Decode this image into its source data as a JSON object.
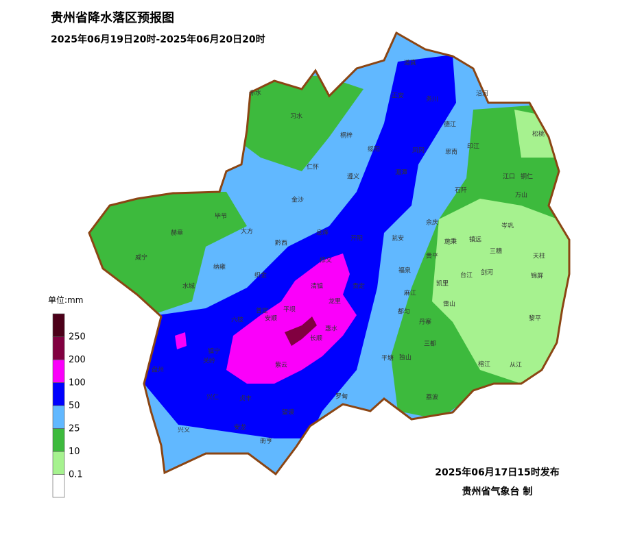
{
  "header": {
    "title": "贵州省降水落区预报图",
    "subtitle": "2025年06月19日20时-2025年06月20日20时"
  },
  "legend": {
    "unit": "单位:mm",
    "colors": [
      "#ffffff",
      "#a6f28f",
      "#3dba3d",
      "#61b8ff",
      "#0000fe",
      "#fa00fa",
      "#810040",
      "#4c0019"
    ],
    "labels": [
      "0.1",
      "10",
      "25",
      "50",
      "100",
      "200",
      "250"
    ]
  },
  "footer": {
    "issued": "2025年06月17日15时发布",
    "agency": "贵州省气象台 制"
  },
  "counties": [
    "赤水",
    "习水",
    "道真",
    "正安",
    "务川",
    "沿河",
    "桐梓",
    "绥阳",
    "凤冈",
    "德江",
    "印江",
    "松桃",
    "仁怀",
    "遵义",
    "湄潭",
    "思南",
    "江口",
    "铜仁",
    "石阡",
    "万山",
    "金沙",
    "毕节",
    "大方",
    "赫章",
    "黔西",
    "息烽",
    "开阳",
    "瓮安",
    "余庆",
    "施秉",
    "镇远",
    "岑巩",
    "三穗",
    "天柱",
    "威宁",
    "纳雍",
    "织金",
    "修文",
    "福泉",
    "黄平",
    "凯里",
    "台江",
    "剑河",
    "锦屏",
    "水城",
    "清镇",
    "麻江",
    "六枝",
    "普定",
    "平坝",
    "安顺",
    "惠水",
    "都匀",
    "丹寨",
    "雷山",
    "黎平",
    "关岭",
    "镇宁",
    "紫云",
    "长顺",
    "独山",
    "三都",
    "榕江",
    "从江",
    "盘州",
    "兴仁",
    "贞丰",
    "望谟",
    "罗甸",
    "平塘",
    "荔波",
    "兴义",
    "安龙",
    "册亨",
    "龙里",
    "贵定"
  ]
}
